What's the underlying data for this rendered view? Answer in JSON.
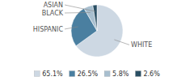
{
  "chart_data": {
    "type": "pie",
    "categories": [
      "WHITE",
      "HISPANIC",
      "BLACK",
      "ASIAN"
    ],
    "values": [
      65.1,
      26.5,
      5.8,
      2.6
    ],
    "value_labels": [
      "65.1%",
      "26.5%",
      "5.8%",
      "2.6%"
    ],
    "colors": [
      "#cdd8e3",
      "#4a7fa0",
      "#a8bfcf",
      "#2a4f64"
    ],
    "legend": "bottom"
  }
}
